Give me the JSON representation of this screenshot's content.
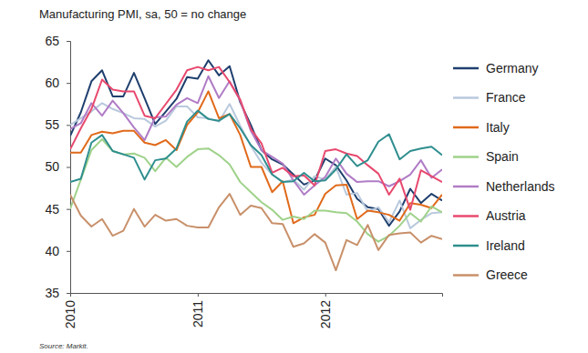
{
  "chart_data": {
    "type": "line",
    "title": "Manufacturing PMI, sa, 50 = no change",
    "source": "Source: Markit.",
    "categories": [
      "2010",
      null,
      null,
      null,
      null,
      null,
      null,
      null,
      null,
      null,
      null,
      null,
      "2011",
      null,
      null,
      null,
      null,
      null,
      null,
      null,
      null,
      null,
      null,
      null,
      "2012",
      null,
      null,
      null,
      null,
      null,
      null,
      null,
      null,
      null,
      null,
      null
    ],
    "ylim": [
      35,
      65
    ],
    "yticks": [
      35,
      40,
      45,
      50,
      55,
      60,
      65
    ],
    "grid": false,
    "legend": "right",
    "series": [
      {
        "name": "Germany",
        "color": "#1f3f6e",
        "values": [
          53.7,
          56.5,
          60.2,
          61.5,
          58.4,
          58.4,
          61.2,
          58.2,
          55.1,
          56.6,
          58.1,
          60.7,
          60.5,
          62.7,
          60.9,
          62.0,
          57.7,
          55.0,
          52.0,
          50.9,
          50.3,
          49.1,
          47.9,
          48.4,
          51.0,
          50.2,
          48.4,
          46.2,
          45.2,
          45.0,
          43.0,
          44.7,
          47.4,
          45.7,
          46.8,
          46.0
        ]
      },
      {
        "name": "France",
        "color": "#b9c9dd",
        "values": [
          55.0,
          55.8,
          56.6,
          57.6,
          56.9,
          56.4,
          55.8,
          55.7,
          54.8,
          55.5,
          57.2,
          57.2,
          55.9,
          55.8,
          55.4,
          57.5,
          54.9,
          52.5,
          50.5,
          49.1,
          48.2,
          48.5,
          47.3,
          48.9,
          48.5,
          50.0,
          46.7,
          46.9,
          44.7,
          45.2,
          43.4,
          46.0,
          42.7,
          43.7,
          44.5,
          44.6
        ]
      },
      {
        "name": "Italy",
        "color": "#e06a1b",
        "values": [
          51.7,
          51.7,
          53.8,
          54.2,
          54.0,
          54.3,
          54.3,
          52.9,
          52.6,
          53.2,
          52.0,
          55.0,
          56.5,
          59.0,
          55.8,
          56.3,
          53.8,
          50.0,
          50.0,
          47.0,
          48.3,
          43.3,
          44.0,
          44.3,
          46.8,
          47.8,
          47.9,
          43.8,
          44.8,
          44.6,
          44.3,
          43.6,
          45.7,
          45.5,
          45.1,
          46.7
        ]
      },
      {
        "name": "Spain",
        "color": "#9fd28a",
        "values": [
          45.0,
          48.5,
          52.0,
          53.3,
          51.9,
          51.5,
          51.6,
          51.1,
          49.5,
          51.1,
          50.0,
          51.2,
          52.1,
          52.2,
          51.4,
          50.3,
          48.2,
          47.0,
          45.8,
          44.9,
          43.7,
          44.1,
          43.8,
          44.8,
          44.8,
          44.6,
          44.5,
          43.5,
          42.0,
          41.1,
          41.8,
          43.0,
          44.5,
          43.5,
          45.3,
          44.6
        ]
      },
      {
        "name": "Netherlands",
        "color": "#b07cc6",
        "values": [
          54.5,
          55.2,
          57.6,
          56.1,
          57.9,
          56.4,
          54.7,
          53.2,
          55.9,
          56.0,
          57.4,
          58.2,
          57.6,
          60.8,
          58.2,
          60.2,
          57.9,
          54.3,
          52.0,
          51.2,
          50.4,
          48.4,
          46.7,
          47.8,
          48.8,
          51.0,
          49.2,
          48.2,
          48.3,
          48.3,
          47.7,
          48.3,
          49.1,
          50.8,
          48.7,
          49.7
        ]
      },
      {
        "name": "Austria",
        "color": "#e8496e",
        "values": [
          52.1,
          54.6,
          56.9,
          60.4,
          59.2,
          59.0,
          59.0,
          56.1,
          55.8,
          57.5,
          59.2,
          61.5,
          61.9,
          61.5,
          61.9,
          60.1,
          58.0,
          54.5,
          52.8,
          49.3,
          49.9,
          48.9,
          49.0,
          47.8,
          51.9,
          52.1,
          51.6,
          51.3,
          50.2,
          49.2,
          46.7,
          48.6,
          44.9,
          49.6,
          48.9,
          48.2
        ]
      },
      {
        "name": "Ireland",
        "color": "#2f8e8e",
        "values": [
          48.2,
          48.6,
          52.9,
          53.8,
          51.9,
          51.5,
          51.1,
          48.5,
          50.8,
          51.0,
          52.2,
          55.4,
          56.7,
          55.7,
          55.5,
          56.3,
          54.6,
          52.6,
          51.4,
          49.1,
          48.2,
          48.3,
          49.3,
          48.3,
          48.4,
          49.7,
          51.5,
          50.1,
          50.8,
          53.0,
          53.9,
          50.9,
          51.9,
          52.2,
          52.4,
          51.4
        ]
      },
      {
        "name": "Greece",
        "color": "#c8906a",
        "values": [
          46.7,
          44.2,
          42.9,
          43.8,
          41.8,
          42.4,
          45.0,
          42.9,
          44.3,
          43.6,
          43.8,
          43.0,
          42.8,
          42.8,
          45.2,
          46.8,
          44.3,
          45.4,
          45.1,
          43.3,
          43.2,
          40.5,
          40.9,
          42.0,
          41.0,
          37.7,
          41.3,
          40.7,
          43.1,
          40.1,
          41.9,
          42.1,
          42.2,
          41.0,
          41.8,
          41.4
        ]
      }
    ]
  }
}
